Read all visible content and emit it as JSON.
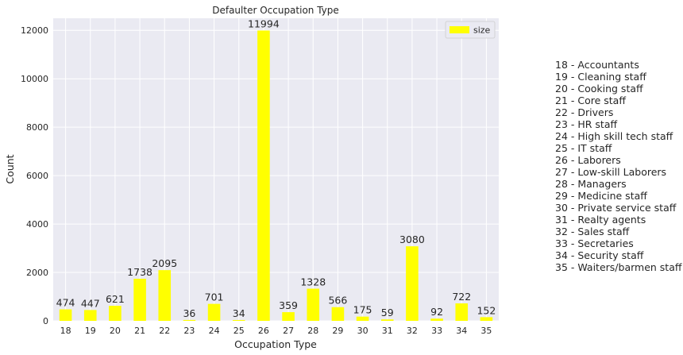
{
  "chart_data": {
    "type": "bar",
    "title": "Defaulter Occupation Type",
    "xlabel": "Occupation Type",
    "ylabel": "Count",
    "categories": [
      "18",
      "19",
      "20",
      "21",
      "22",
      "23",
      "24",
      "25",
      "26",
      "27",
      "28",
      "29",
      "30",
      "31",
      "32",
      "33",
      "34",
      "35"
    ],
    "series": [
      {
        "name": "size",
        "values": [
          474,
          447,
          621,
          1738,
          2095,
          36,
          701,
          34,
          11994,
          359,
          1328,
          566,
          175,
          59,
          3080,
          92,
          722,
          152
        ]
      }
    ],
    "ylim": [
      0,
      12500
    ],
    "yticks": [
      0,
      2000,
      4000,
      6000,
      8000,
      10000,
      12000
    ],
    "grid": true,
    "legend_position": "top-right",
    "bar_color": "#ffff00",
    "background_color": "#eaeaf2",
    "category_legend": [
      "18 - Accountants",
      "19 - Cleaning staff",
      "20 - Cooking staff",
      "21 - Core staff",
      "22 - Drivers",
      "23 - HR staff",
      "24 - High skill tech staff",
      "25 - IT staff",
      "26 - Laborers",
      "27 - Low-skill Laborers",
      "28 - Managers",
      "29 - Medicine staff",
      "30 - Private service staff",
      "31 - Realty agents",
      "32 - Sales staff",
      "33 - Secretaries",
      "34 - Security staff",
      "35 - Waiters/barmen staff"
    ]
  }
}
